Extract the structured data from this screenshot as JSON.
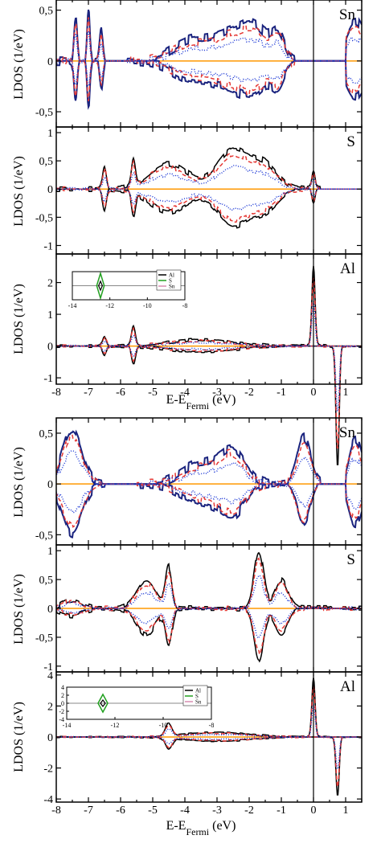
{
  "colors": {
    "total": "#000000",
    "s": "#1a237e",
    "p": "#e53935",
    "d": "#1e3ad6",
    "f": "#ff9800",
    "inset_al": "#000000",
    "inset_s": "#22a020",
    "inset_sn": "#d98cb0"
  },
  "figure": {
    "xlabel_main": "E-E",
    "xlabel_sub": "Fermi",
    "xlabel_unit": " (eV)",
    "ylabel": "LDOS (1/eV)"
  },
  "chart_data": [
    {
      "id": "top-sn",
      "type": "line",
      "element": "Sn",
      "xlim": [
        -8,
        1.5
      ],
      "ylim": [
        -0.65,
        0.6
      ],
      "yticks": [
        0.5,
        0,
        -0.5
      ],
      "ytick_labels": [
        "0,5",
        "0",
        "-0,5"
      ],
      "features": [
        [
          -7.4,
          0.45,
          0.05
        ],
        [
          -7.0,
          0.5,
          0.04
        ],
        [
          -6.6,
          0.3,
          0.05
        ],
        [
          -3.8,
          0.2,
          0.6
        ],
        [
          -2.6,
          0.25,
          0.5
        ],
        [
          -1.8,
          0.3,
          0.4
        ],
        [
          -1.1,
          0.25,
          0.2
        ],
        [
          1.3,
          0.4,
          0.3
        ]
      ],
      "cutoffs": [
        [
          -8,
          -6.5
        ],
        [
          -5.8,
          -0.6
        ],
        [
          1.0,
          1.5
        ]
      ]
    },
    {
      "id": "top-s",
      "type": "line",
      "element": "S",
      "xlim": [
        -8,
        1.5
      ],
      "ylim": [
        -1.15,
        1.1
      ],
      "yticks": [
        1,
        0.5,
        0,
        -0.5,
        -1
      ],
      "ytick_labels": [
        "1",
        "0,5",
        "0",
        "-0,5",
        "-1"
      ],
      "features": [
        [
          -6.5,
          0.4,
          0.06
        ],
        [
          -5.6,
          0.45,
          0.06
        ],
        [
          -4.5,
          0.45,
          0.6
        ],
        [
          -2.5,
          0.7,
          0.5
        ],
        [
          -1.5,
          0.4,
          0.4
        ],
        [
          0.0,
          0.3,
          0.05
        ]
      ],
      "cutoffs": [
        [
          -8,
          0.2
        ]
      ]
    },
    {
      "id": "top-al",
      "type": "line",
      "element": "Al",
      "xlim": [
        -8,
        1.5
      ],
      "ylim": [
        -1.2,
        2.9
      ],
      "yticks": [
        2,
        1,
        0,
        -1
      ],
      "ytick_labels": [
        "2",
        "1",
        "0",
        "-1"
      ],
      "xticks": [
        -8,
        -7,
        -6,
        -5,
        -4,
        -3,
        -2,
        -1,
        0,
        1
      ],
      "xtick_labels": [
        "-8",
        "-7",
        "-6",
        "-5",
        "-4",
        "-3",
        "-2",
        "-1",
        "0",
        "1"
      ],
      "features": [
        [
          -6.5,
          0.3,
          0.06
        ],
        [
          -5.6,
          0.6,
          0.06
        ],
        [
          -3.5,
          0.2,
          1.0
        ],
        [
          0.0,
          2.5,
          0.05
        ],
        [
          0.7,
          -1.0,
          0.1
        ]
      ],
      "cutoffs": [
        [
          -8,
          1.5
        ]
      ],
      "inset": {
        "xlim": [
          -14,
          -8
        ],
        "ylim": [
          -2.5,
          2.5
        ],
        "xticks": [
          -14,
          -12,
          -10,
          -8
        ],
        "xtick_labels": [
          "-14",
          "-12",
          "-10",
          "-8"
        ],
        "yticks": [],
        "ytick_labels": [],
        "legend": [
          "Al",
          "S",
          "Sn"
        ]
      }
    },
    {
      "id": "bottom-sn",
      "type": "line",
      "element": "Sn",
      "xlim": [
        -8,
        1.5
      ],
      "ylim": [
        -0.6,
        0.65
      ],
      "yticks": [
        0.5,
        0,
        -0.5
      ],
      "ytick_labels": [
        "0,5",
        "0",
        "-0,5"
      ],
      "features": [
        [
          -7.5,
          0.55,
          0.3
        ],
        [
          -3.5,
          0.2,
          0.6
        ],
        [
          -2.5,
          0.3,
          0.4
        ],
        [
          -0.3,
          0.45,
          0.2
        ],
        [
          1.3,
          0.45,
          0.2
        ]
      ],
      "cutoffs": [
        [
          -8,
          -6.5
        ],
        [
          -5.5,
          0.2
        ],
        [
          1.0,
          1.5
        ]
      ]
    },
    {
      "id": "bottom-s",
      "type": "line",
      "element": "S",
      "xlim": [
        -8,
        1.5
      ],
      "ylim": [
        -1.1,
        1.1
      ],
      "yticks": [
        1,
        0.5,
        0,
        -0.5,
        -1
      ],
      "ytick_labels": [
        "1",
        "0,5",
        "0",
        "-0,5",
        "-1"
      ],
      "features": [
        [
          -7.5,
          0.15,
          0.3
        ],
        [
          -5.2,
          0.5,
          0.3
        ],
        [
          -4.5,
          0.7,
          0.1
        ],
        [
          -1.7,
          1.0,
          0.15
        ],
        [
          -1.0,
          0.5,
          0.2
        ],
        [
          0.7,
          -0.5,
          0.05
        ]
      ],
      "cutoffs": [
        [
          -8,
          1.5
        ]
      ]
    },
    {
      "id": "bottom-al",
      "type": "line",
      "element": "Al",
      "xlim": [
        -8,
        1.5
      ],
      "ylim": [
        -4.2,
        4.2
      ],
      "yticks": [
        4,
        2,
        0,
        -2,
        -4
      ],
      "ytick_labels": [
        "4",
        "2",
        "0",
        "-2",
        "-4"
      ],
      "xticks": [
        -8,
        -7,
        -6,
        -5,
        -4,
        -3,
        -2,
        -1,
        0,
        1
      ],
      "xtick_labels": [
        "-8",
        "-7",
        "-6",
        "-5",
        "-4",
        "-3",
        "-2",
        "-1",
        "0",
        "1"
      ],
      "features": [
        [
          -4.5,
          0.8,
          0.1
        ],
        [
          -3.0,
          0.3,
          1.0
        ],
        [
          0.0,
          3.8,
          0.05
        ],
        [
          0.75,
          -3.8,
          0.05
        ]
      ],
      "cutoffs": [
        [
          -8,
          1.5
        ]
      ],
      "inset": {
        "xlim": [
          -14,
          -8
        ],
        "ylim": [
          -4,
          4
        ],
        "xticks": [
          -14,
          -12,
          -10,
          -8
        ],
        "xtick_labels": [
          "-14",
          "-12",
          "-10",
          "-8"
        ],
        "yticks": [
          4,
          2,
          0,
          -2,
          -4
        ],
        "ytick_labels": [
          "4",
          "2",
          "0",
          "-2",
          "-4"
        ],
        "legend": [
          "Al",
          "S",
          "Sn"
        ]
      }
    }
  ]
}
